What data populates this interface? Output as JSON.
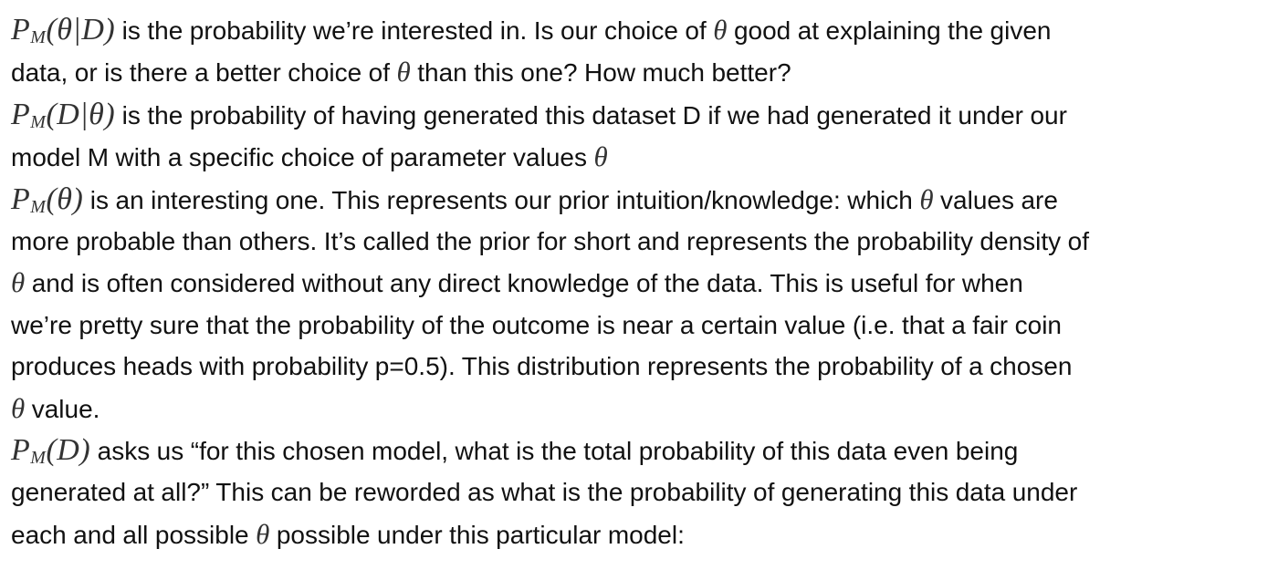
{
  "paragraphs": [
    {
      "expr_main": "P",
      "expr_sub": "M",
      "expr_args": "(θ|D)",
      "text_1": " is the probability we’re interested in. Is our choice of ",
      "sym_1": "θ",
      "text_2": " good at explaining the given",
      "text_3": "data, or is there a better choice of ",
      "sym_2": "θ",
      "text_4": " than this one? How much better?"
    },
    {
      "expr_main": "P",
      "expr_sub": "M",
      "expr_args": "(D|θ)",
      "text_1": " is the probability of having generated this dataset D if we had generated it under our",
      "text_2": "model M with a specific choice of parameter values ",
      "sym_1": "θ"
    },
    {
      "expr_main": "P",
      "expr_sub": "M",
      "expr_args": "(θ)",
      "text_1": " is an interesting one. This represents our prior intuition/knowledge: which ",
      "sym_1": "θ",
      "text_2": " values are",
      "text_3": "more probable than others. It’s called the prior for short and represents the probability density of",
      "sym_2": "θ",
      "text_4": " and is often considered without any direct knowledge of the data. This is useful for when",
      "text_5": "we’re pretty sure that the probability of the outcome is near a certain value (i.e. that a fair coin",
      "text_6": "produces heads with probability p=0.5). This distribution represents the probability of a chosen",
      "sym_3": "θ",
      "text_7": " value."
    },
    {
      "expr_main": "P",
      "expr_sub": "M",
      "expr_args": "(D)",
      "text_1": " asks us “for this chosen model, what is the total probability of this data even being",
      "text_2": "generated at all?” This can be reworded as what is the probability of generating this data under",
      "text_3": "each and all possible ",
      "sym_1": "θ",
      "text_4": " possible under this particular model:"
    }
  ]
}
